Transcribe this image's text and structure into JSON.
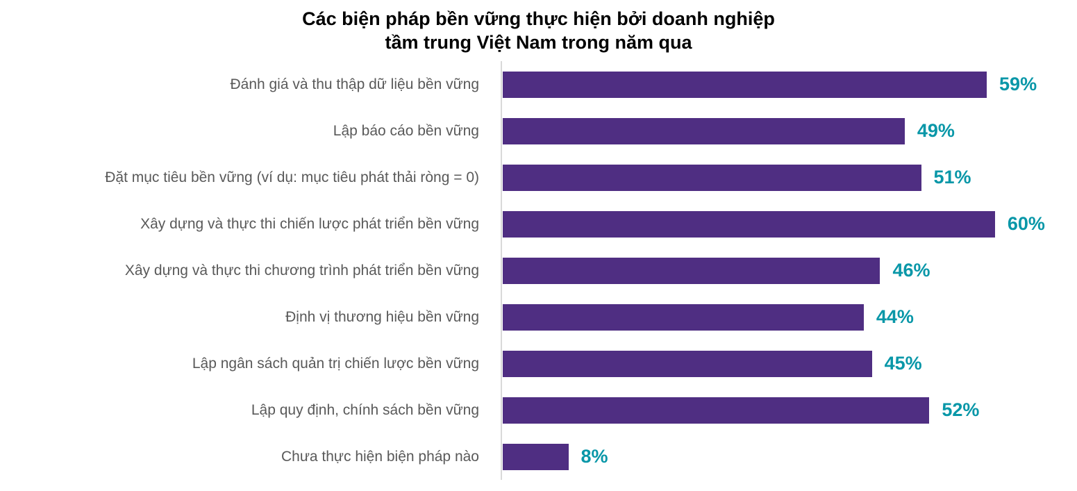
{
  "chart": {
    "title_line1": "Các biện pháp bền vững thực hiện bởi doanh nghiệp",
    "title_line2": "tầm trung Việt Nam trong năm qua"
  },
  "chart_data": {
    "type": "bar",
    "orientation": "horizontal",
    "title": "Các biện pháp bền vững thực hiện bởi doanh nghiệp tầm trung Việt Nam trong năm qua",
    "categories": [
      "Đánh giá và thu thập dữ liệu bền vững",
      "Lập báo cáo bền vững",
      "Đặt mục tiêu bền vững (ví dụ: mục tiêu phát thải ròng = 0)",
      "Xây dựng và thực thi chiến lược phát triển bền vững",
      "Xây dựng và thực thi chương trình phát triển bền vững",
      "Định vị thương hiệu bền vững",
      "Lập ngân sách quản trị chiến lược bền vững",
      "Lập quy định, chính sách bền vững",
      "Chưa thực hiện biện pháp nào"
    ],
    "values": [
      59,
      49,
      51,
      60,
      46,
      44,
      45,
      52,
      8
    ],
    "value_labels": [
      "59%",
      "49%",
      "51%",
      "60%",
      "46%",
      "44%",
      "45%",
      "52%",
      "8%"
    ],
    "xlabel": "",
    "ylabel": "",
    "xlim": [
      0,
      70
    ],
    "grid": false,
    "legend": false,
    "bar_color": "#4f2e82",
    "value_label_color": "#0997a8",
    "category_label_color": "#595959",
    "axis_line_color": "#d9d9d9",
    "title_color": "#000000"
  }
}
